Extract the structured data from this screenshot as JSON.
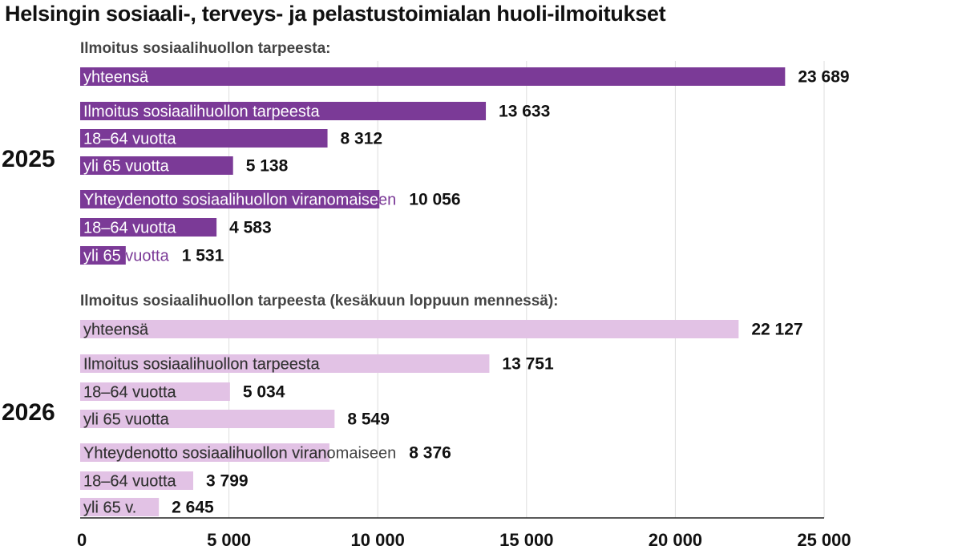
{
  "title": "Helsingin sosiaali-, terveys- ja pelastustoimialan huoli-ilmoitukset",
  "chart_data": {
    "type": "bar",
    "orientation": "horizontal",
    "title": "Helsingin sosiaali-, terveys- ja pelastustoimialan huoli-ilmoitukset",
    "xlim": [
      0,
      25000
    ],
    "ticks": [
      {
        "value": 0,
        "label": "0"
      },
      {
        "value": 5000,
        "label": "5 000"
      },
      {
        "value": 10000,
        "label": "10 000"
      },
      {
        "value": 15000,
        "label": "15 000"
      },
      {
        "value": 20000,
        "label": "20 000"
      },
      {
        "value": 25000,
        "label": "25 000"
      }
    ],
    "grid": true,
    "groups": [
      {
        "year": "2025",
        "subtitle": "Ilmoitus sosiaalihuollon tarpeesta:",
        "color": "#7b3a97",
        "bars": [
          {
            "label": "yhteensä",
            "value": 23689,
            "value_label": "23 689"
          },
          {
            "label": "Ilmoitus sosiaalihuollon tarpeesta",
            "value": 13633,
            "value_label": "13 633"
          },
          {
            "label": "18–64 vuotta",
            "value": 8312,
            "value_label": "8 312"
          },
          {
            "label": "yli 65 vuotta",
            "value": 5138,
            "value_label": "5 138"
          },
          {
            "label": "Yhteydenotto sosiaalihuollon viranomaiseen",
            "value": 10056,
            "value_label": "10 056"
          },
          {
            "label": "18–64 vuotta",
            "value": 4583,
            "value_label": "4 583"
          },
          {
            "label": "yli 65 vuotta",
            "value": 1531,
            "value_label": "1 531"
          }
        ]
      },
      {
        "year": "2026",
        "subtitle": "Ilmoitus sosiaalihuollon tarpeesta (kesäkuun loppuun mennessä):",
        "color": "#e2c2e5",
        "bars": [
          {
            "label": "yhteensä",
            "value": 22127,
            "value_label": "22 127"
          },
          {
            "label": "Ilmoitus sosiaalihuollon tarpeesta",
            "value": 13751,
            "value_label": "13 751"
          },
          {
            "label": "18–64 vuotta",
            "value": 5034,
            "value_label": "5 034"
          },
          {
            "label": "yli 65 vuotta",
            "value": 8549,
            "value_label": "8 549"
          },
          {
            "label": "Yhteydenotto sosiaalihuollon viranomaiseen",
            "value": 8376,
            "value_label": "8 376"
          },
          {
            "label": "18–64 vuotta",
            "value": 3799,
            "value_label": "3 799"
          },
          {
            "label": "yli 65 v.",
            "value": 2645,
            "value_label": "2 645"
          }
        ]
      }
    ],
    "colors": {
      "grid": "#dddddd",
      "axis": "#222222",
      "label_on_dark": "#ffffff",
      "label_on_light": "#333333",
      "label_outside_dark": "#7b3a97",
      "label_outside_light": "#444444"
    }
  }
}
